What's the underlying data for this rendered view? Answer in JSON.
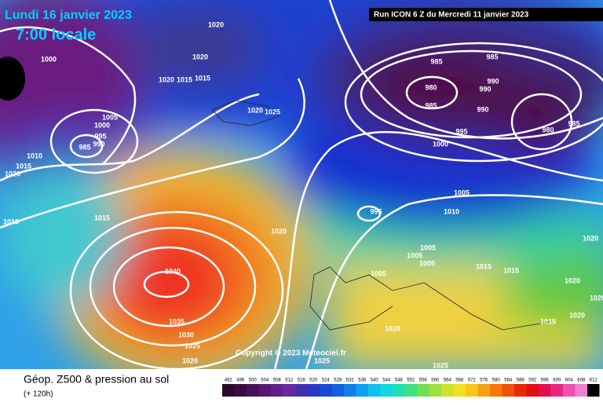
{
  "header": {
    "date": "Lundi 16 janvier 2023",
    "time": "7:00 locale",
    "run": "Run ICON 6 Z du Mercredi 11 janvier 2023"
  },
  "copyright": "Copyright © 2023 Meteociel.fr",
  "isobar_labels": [
    "1020",
    "1000",
    "1020",
    "1020",
    "1015",
    "1015",
    "1005",
    "1000",
    "995",
    "990",
    "985",
    "1010",
    "1015",
    "1020",
    "1010",
    "1015",
    "1020",
    "1025",
    "1020",
    "1040",
    "1035",
    "1030",
    "1025",
    "1020",
    "985",
    "985",
    "980",
    "985",
    "990",
    "990",
    "990",
    "995",
    "1000",
    "980",
    "985",
    "1005",
    "1010",
    "995",
    "1005",
    "1005",
    "1005",
    "1005",
    "1015",
    "1015",
    "1020",
    "1020",
    "1020",
    "1015",
    "1020",
    "1020",
    "1025",
    "1025"
  ],
  "legend": {
    "title": "Géop. Z500 & pression au sol",
    "subtitle": "(+ 120h)",
    "scale": [
      "492",
      "496",
      "500",
      "504",
      "508",
      "512",
      "516",
      "520",
      "524",
      "528",
      "532",
      "536",
      "540",
      "544",
      "548",
      "552",
      "556",
      "560",
      "564",
      "568",
      "572",
      "576",
      "580",
      "584",
      "588",
      "592",
      "596",
      "600",
      "604",
      "608",
      "612"
    ]
  }
}
